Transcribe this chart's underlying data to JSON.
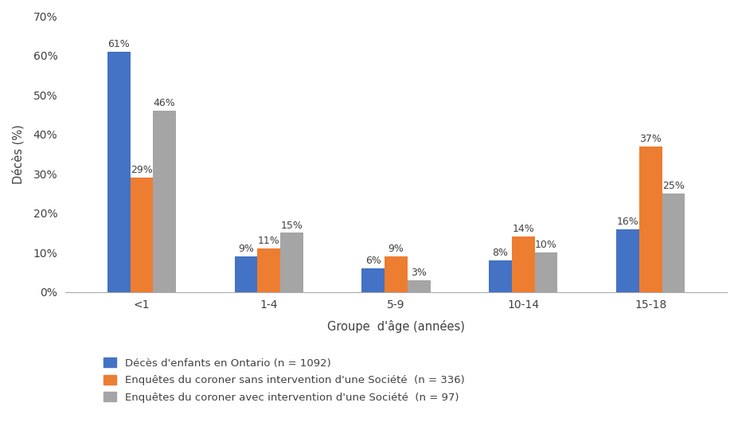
{
  "categories": [
    "<1",
    "1-4",
    "5-9",
    "10-14",
    "15-18"
  ],
  "series": [
    {
      "label": "Décès d'enfants en Ontario (n = 1092)",
      "color": "#4472C4",
      "values": [
        61,
        9,
        6,
        8,
        16
      ]
    },
    {
      "label": "Enquêtes du coroner sans intervention d'une Société  (n = 336)",
      "color": "#ED7D31",
      "values": [
        29,
        11,
        9,
        14,
        37
      ]
    },
    {
      "label": "Enquêtes du coroner avec intervention d'une Société  (n = 97)",
      "color": "#A5A5A5",
      "values": [
        46,
        15,
        3,
        10,
        25
      ]
    }
  ],
  "ylabel": "Décès (%)",
  "xlabel": "Groupe  d'âge (années)",
  "ylim": [
    0,
    70
  ],
  "yticks": [
    0,
    10,
    20,
    30,
    40,
    50,
    60,
    70
  ],
  "ytick_labels": [
    "0%",
    "10%",
    "20%",
    "30%",
    "40%",
    "50%",
    "60%",
    "70%"
  ],
  "bar_width": 0.18,
  "background_color": "#FFFFFF",
  "label_fontsize": 9,
  "tick_fontsize": 10,
  "axis_label_fontsize": 10.5,
  "legend_fontsize": 9.5
}
